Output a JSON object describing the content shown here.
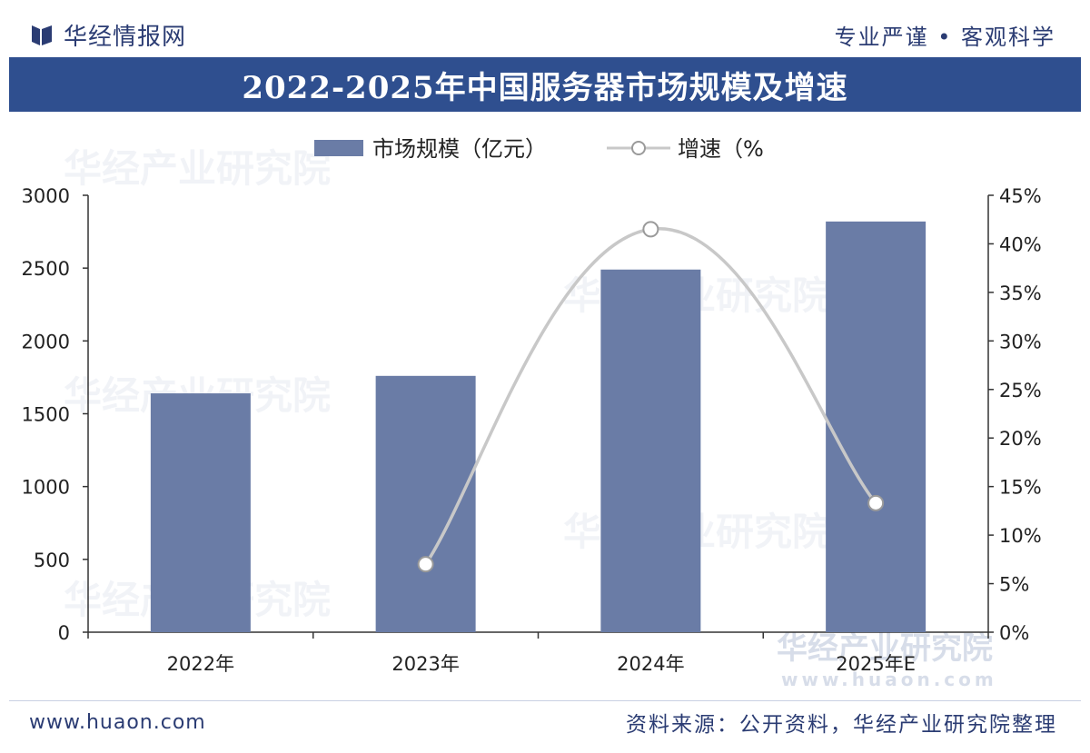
{
  "header": {
    "brand": "华经情报网",
    "motto": "专业严谨 • 客观科学"
  },
  "footer": {
    "website": "www.huaon.com",
    "source": "资料来源：公开资料，华经产业研究院整理"
  },
  "watermark": {
    "name": "华经产业研究院",
    "url": "www.huaon.com"
  },
  "colors": {
    "title_bar": "#2f4f8f",
    "bar": "#6a7ca6",
    "line": "#c8c8c8",
    "text_brand": "#2b3c73"
  },
  "chart_data": {
    "type": "bar",
    "title": "2022-2025年中国服务器市场规模及增速",
    "categories": [
      "2022年",
      "2023年",
      "2024年",
      "2025年E"
    ],
    "series": [
      {
        "name": "市场规模（亿元）",
        "type": "bar",
        "axis": "left",
        "values": [
          1640,
          1760,
          2490,
          2820
        ]
      },
      {
        "name": "增速（%",
        "type": "line",
        "axis": "right",
        "values": [
          null,
          7.0,
          41.5,
          13.3
        ]
      }
    ],
    "y_left": {
      "min": 0,
      "max": 3000,
      "ticks": [
        "0",
        "500",
        "1000",
        "1500",
        "2000",
        "2500",
        "3000"
      ]
    },
    "y_right": {
      "min": 0,
      "max": 45,
      "ticks": [
        "0%",
        "5%",
        "10%",
        "15%",
        "20%",
        "25%",
        "30%",
        "35%",
        "40%",
        "45%"
      ]
    },
    "grid": false,
    "legend": "top-center"
  }
}
